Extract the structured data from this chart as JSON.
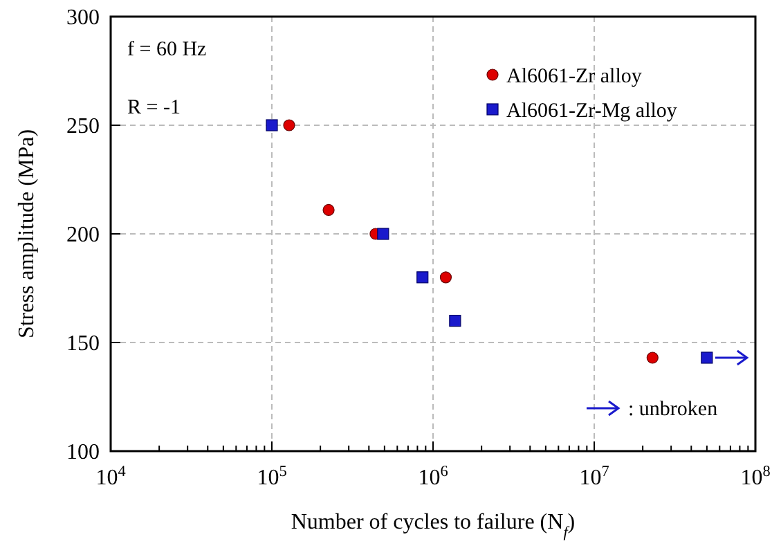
{
  "chart_data": {
    "type": "scatter",
    "xlabel": "Number of cycles to failure (N$_{f}$)",
    "ylabel": "Stress amplitude (MPa)",
    "log": "x",
    "xlim": [
      10000,
      100000000
    ],
    "ylim": [
      100,
      300
    ],
    "xticks": [
      {
        "value": 10000,
        "label": "10$^{4}$"
      },
      {
        "value": 100000,
        "label": "10$^{5}$"
      },
      {
        "value": 1000000,
        "label": "10$^{6}$"
      },
      {
        "value": 10000000,
        "label": "10$^{7}$"
      },
      {
        "value": 100000000,
        "label": "10$^{8}$"
      }
    ],
    "yticks": [
      100,
      150,
      200,
      250,
      300
    ],
    "grid": true,
    "legend": "top right",
    "series": [
      {
        "name": "Al6061-Zr alloy",
        "color": "#dd0000",
        "marker": "circle",
        "x": [
          128000,
          225000,
          440000,
          1200000,
          23000000
        ],
        "values": [
          250,
          211,
          200,
          180,
          143
        ]
      },
      {
        "name": "Al6061-Zr-Mg alloy",
        "color": "#1a1acc",
        "marker": "square",
        "x": [
          100000,
          490000,
          860000,
          1370000,
          50000000
        ],
        "values": [
          250,
          200,
          180,
          160,
          143
        ]
      }
    ],
    "annotations": [
      "f = 60 Hz",
      "R = -1",
      ": unbroken"
    ]
  }
}
